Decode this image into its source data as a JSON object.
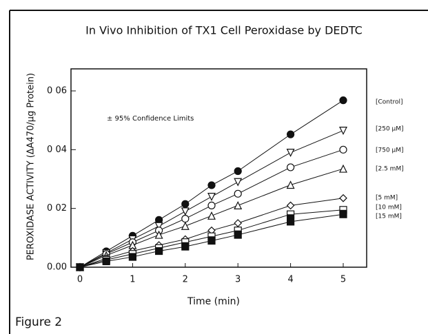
{
  "chart_data": {
    "type": "line",
    "title": "In Vivo Inhibition of TX1 Cell Peroxidase by DEDTC",
    "x_label": "Time (min)",
    "y_label": "PEROXIDASE ACTIVITY (ΔA470/µg Protein)",
    "annotation": "± 95% Confidence Limits",
    "figure_label": "Figure 2",
    "x": [
      0,
      0.5,
      1,
      1.5,
      2,
      2.5,
      3,
      4,
      5
    ],
    "xlim": [
      0,
      5
    ],
    "xticks": [
      0,
      1,
      2,
      3,
      4,
      5
    ],
    "ylim": [
      0,
      0.0675
    ],
    "yticks": [
      {
        "value": 0,
        "label": "0.00"
      },
      {
        "value": 0.02,
        "label": "0 02"
      },
      {
        "value": 0.04,
        "label": "0 04"
      },
      {
        "value": 0.06,
        "label": "0 06"
      }
    ],
    "color": "#111111",
    "series": [
      {
        "name": "[Control]",
        "marker": "filled-circle",
        "values": [
          0,
          0.0054,
          0.0107,
          0.0161,
          0.0215,
          0.0279,
          0.0327,
          0.0452,
          0.0568
        ]
      },
      {
        "name": "[250 µM]",
        "marker": "down-triangle",
        "values": [
          0,
          0.0048,
          0.0095,
          0.014,
          0.019,
          0.024,
          0.029,
          0.039,
          0.0465
        ]
      },
      {
        "name": "[750 µM]",
        "marker": "circle",
        "values": [
          0,
          0.0045,
          0.0085,
          0.0125,
          0.0165,
          0.021,
          0.025,
          0.034,
          0.04
        ]
      },
      {
        "name": "[2.5 mM]",
        "marker": "triangle",
        "values": [
          0,
          0.004,
          0.0075,
          0.011,
          0.014,
          0.0175,
          0.021,
          0.028,
          0.0335
        ]
      },
      {
        "name": "[5 mM]",
        "marker": "diamond",
        "values": [
          0,
          0.003,
          0.0055,
          0.0075,
          0.0095,
          0.0125,
          0.015,
          0.021,
          0.0235
        ]
      },
      {
        "name": "[10 mM]",
        "marker": "half-square",
        "values": [
          0,
          0.0025,
          0.0045,
          0.0065,
          0.0085,
          0.0105,
          0.0125,
          0.018,
          0.0195
        ]
      },
      {
        "name": "[15 mM]",
        "marker": "filled-square",
        "values": [
          0,
          0.002,
          0.0035,
          0.0055,
          0.007,
          0.009,
          0.011,
          0.0155,
          0.018
        ]
      }
    ]
  }
}
